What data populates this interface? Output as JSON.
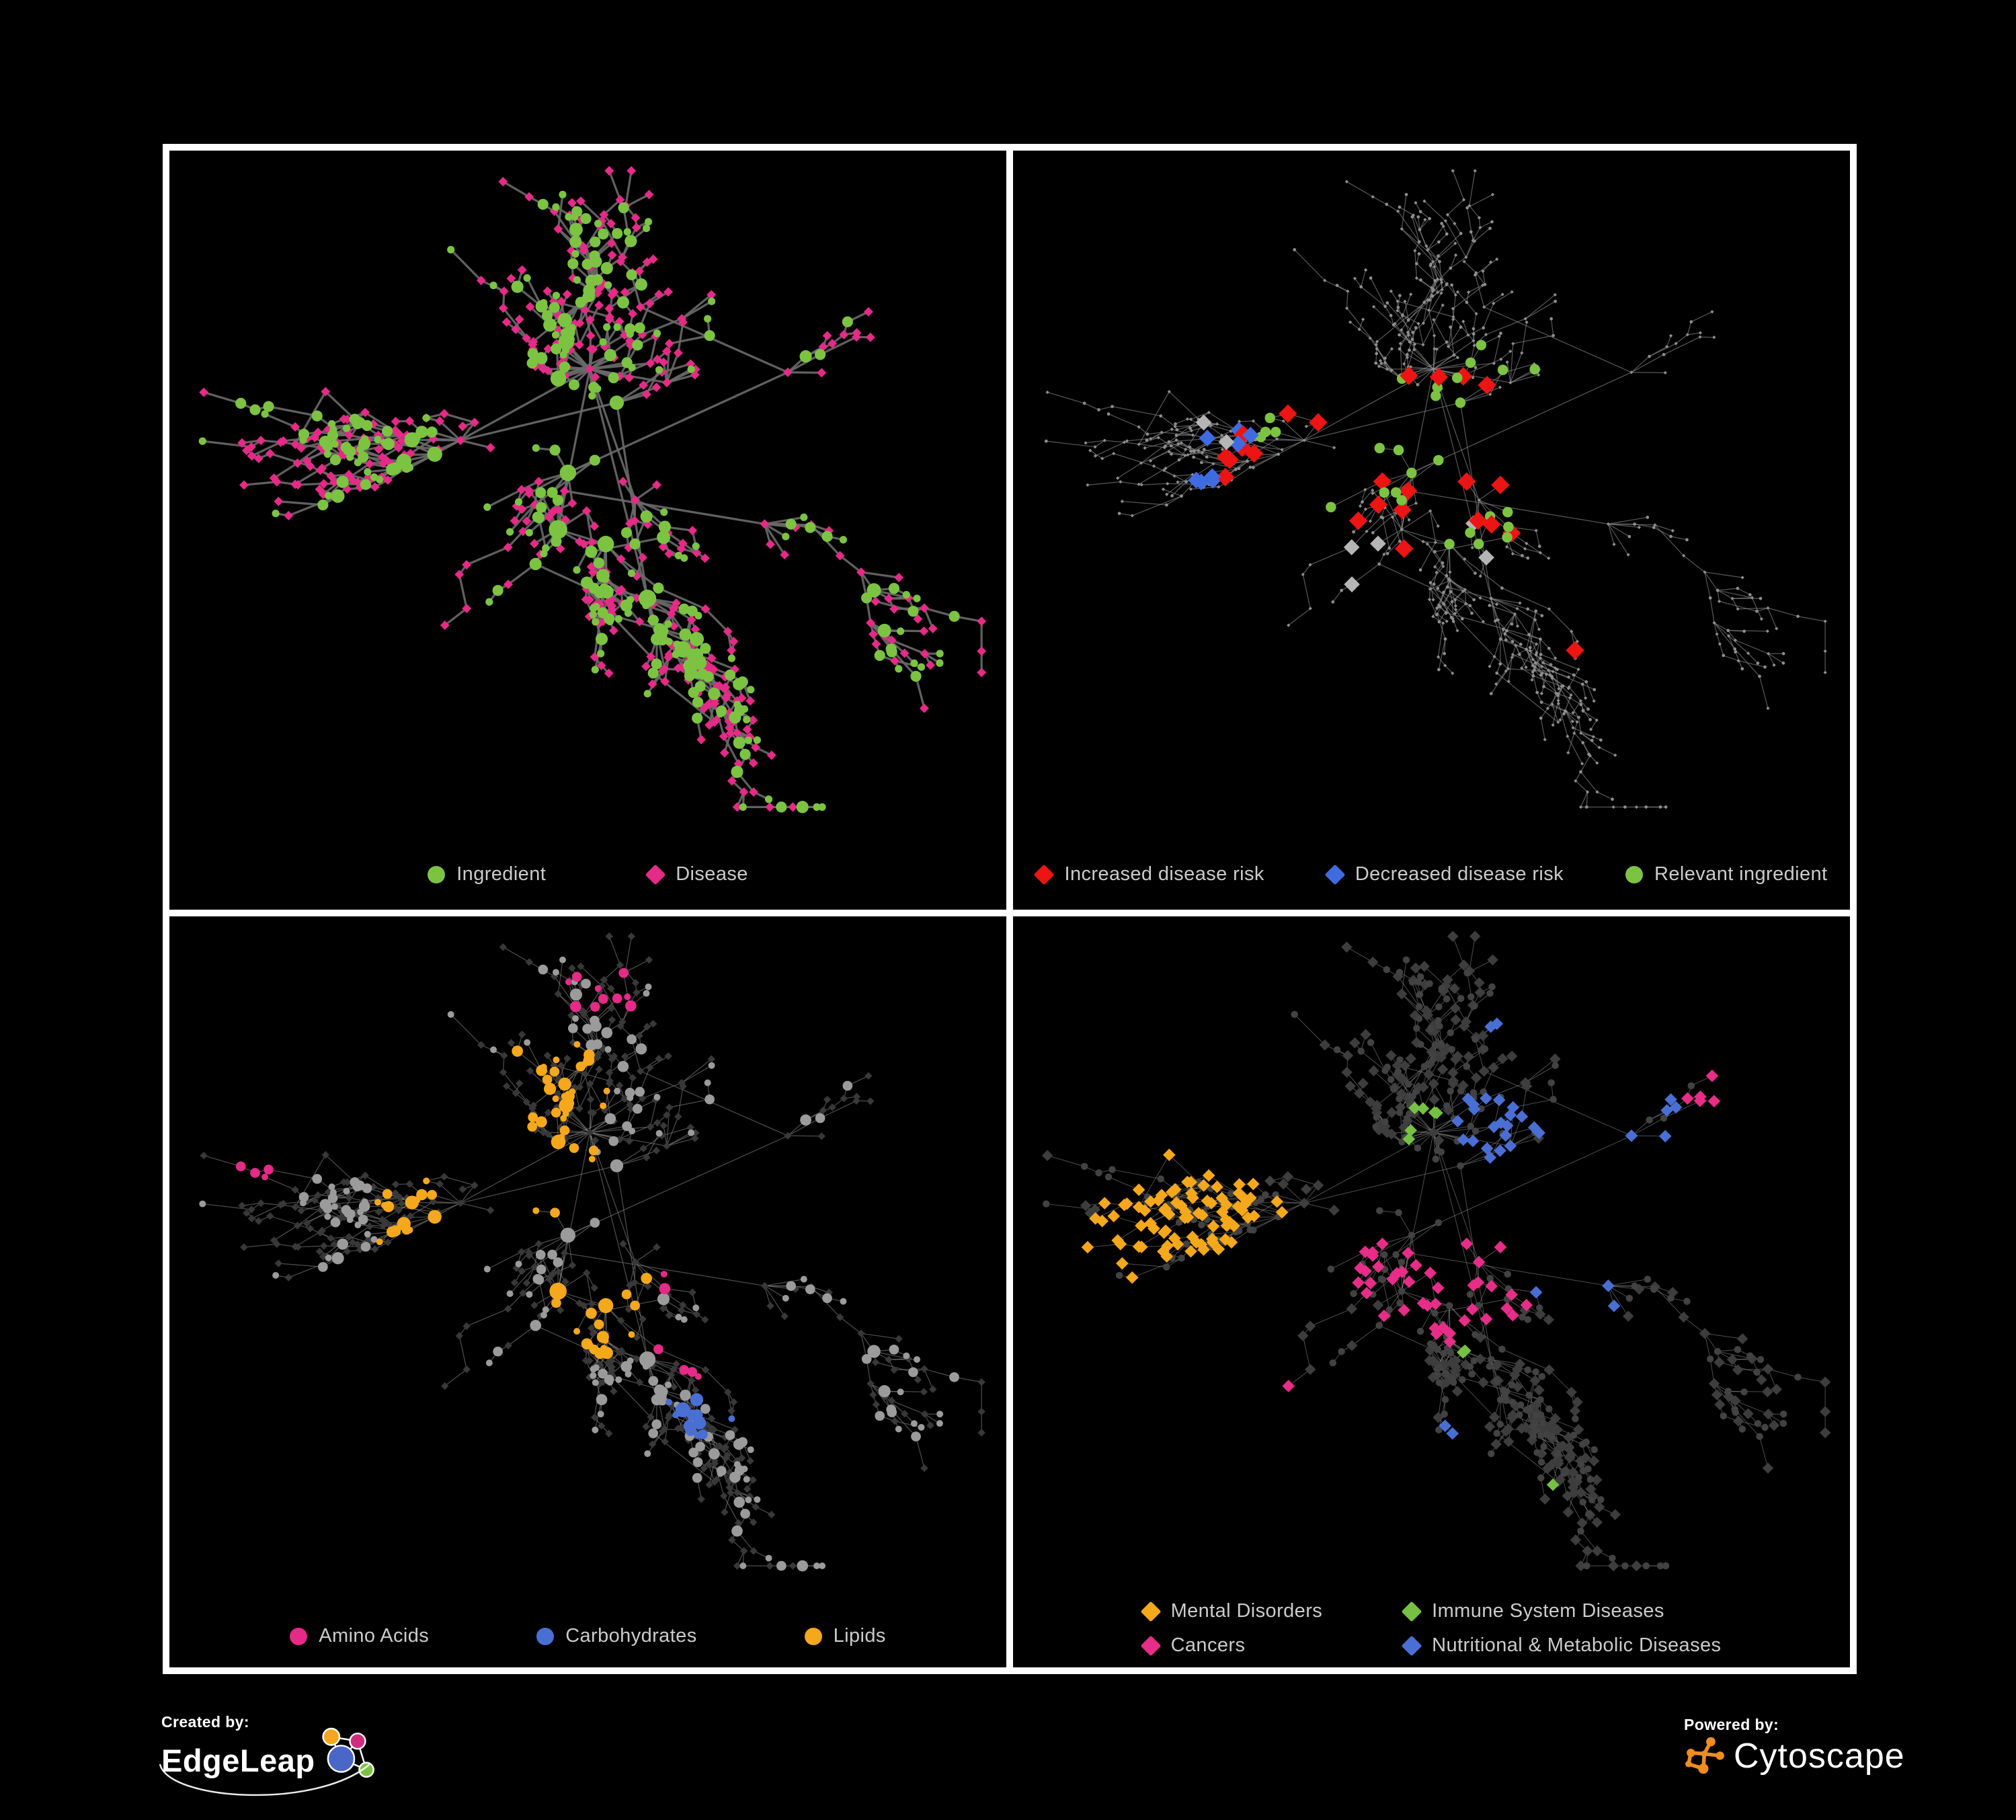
{
  "page": {
    "background": "#000000",
    "frame_color": "#ffffff",
    "panel_background": "#000000",
    "legend_text_color": "#cbcbcb"
  },
  "network": {
    "seed": 20,
    "nodes": 720,
    "hubs": 14,
    "bias": 2.0,
    "ingredient_share": 0.36,
    "extra_edges": 150
  },
  "panels": [
    {
      "name": "ingredient-disease-network",
      "legend": {
        "layout": "row",
        "items": [
          {
            "shape": "circle",
            "color": "#7cc342",
            "label": "Ingredient"
          },
          {
            "shape": "diamond",
            "color": "#e52a87",
            "label": "Disease"
          }
        ]
      },
      "style": {
        "edge": {
          "color": "#6a6a6a",
          "width": 2.6,
          "opacity": 0.9
        },
        "ingredient": {
          "shape": "circle",
          "color": "#7cc342",
          "rmin": 4.5,
          "rscale": 2.0,
          "rmax": 11.5
        },
        "disease": {
          "shape": "diamond",
          "color": "#e52a87",
          "r": 5.6
        },
        "highlights": []
      }
    },
    {
      "name": "disease-risk-network",
      "legend": {
        "layout": "row",
        "items": [
          {
            "shape": "diamond",
            "color": "#ed1414",
            "label": "Increased disease risk"
          },
          {
            "shape": "diamond",
            "color": "#3f6be0",
            "label": "Decreased disease risk"
          },
          {
            "shape": "circle",
            "color": "#7cc342",
            "label": "Relevant ingredient"
          }
        ]
      },
      "style": {
        "edge": {
          "color": "#8f8f8f",
          "width": 1.0,
          "opacity": 0.6
        },
        "ingredient": {
          "shape": "circle",
          "color": "#8e8e8e",
          "r": 1.9
        },
        "disease": {
          "shape": "diamond",
          "color": "#8e8e8e",
          "r": 2.1
        },
        "highlights": [
          {
            "type": "d",
            "shape": "diamond",
            "color": "#ed1414",
            "r": 11,
            "count": 24,
            "radius": 0.07,
            "foci": [
              [
                0.35,
                0.4
              ],
              [
                0.45,
                0.45
              ],
              [
                0.55,
                0.42
              ],
              [
                0.6,
                0.5
              ],
              [
                0.42,
                0.55
              ],
              [
                0.3,
                0.47
              ],
              [
                0.68,
                0.44
              ],
              [
                0.73,
                0.72
              ],
              [
                0.78,
                0.78
              ],
              [
                0.52,
                0.35
              ]
            ]
          },
          {
            "type": "d",
            "shape": "diamond",
            "color": "#3f6be0",
            "r": 10,
            "count": 8,
            "radius": 0.05,
            "foci": [
              [
                0.25,
                0.44
              ],
              [
                0.24,
                0.5
              ],
              [
                0.87,
                0.3
              ],
              [
                0.89,
                0.31
              ],
              [
                0.3,
                0.56
              ]
            ]
          },
          {
            "type": "d",
            "shape": "diamond",
            "color": "#b5b5b5",
            "r": 9.5,
            "count": 7,
            "radius": 0.06,
            "foci": [
              [
                0.27,
                0.38
              ],
              [
                0.5,
                0.5
              ],
              [
                0.57,
                0.55
              ],
              [
                0.45,
                0.6
              ]
            ]
          },
          {
            "type": "i",
            "shape": "circle",
            "color": "#7cc342",
            "r": 6.2,
            "count": 28,
            "radius": 0.09,
            "foci": [
              [
                0.42,
                0.42
              ],
              [
                0.5,
                0.4
              ],
              [
                0.55,
                0.5
              ],
              [
                0.35,
                0.35
              ],
              [
                0.3,
                0.55
              ],
              [
                0.6,
                0.35
              ],
              [
                0.25,
                0.3
              ]
            ]
          }
        ]
      }
    },
    {
      "name": "nutrient-class-network",
      "legend": {
        "layout": "row",
        "items": [
          {
            "shape": "circle",
            "color": "#e52a87",
            "label": "Amino Acids"
          },
          {
            "shape": "circle",
            "color": "#4a6fd4",
            "label": "Carbohydrates"
          },
          {
            "shape": "circle",
            "color": "#f5a81c",
            "label": "Lipids"
          }
        ]
      },
      "style": {
        "edge": {
          "color": "#8d8d8d",
          "width": 1.0,
          "opacity": 0.55
        },
        "ingredient": {
          "shape": "circle",
          "color": "#9b9b9b",
          "rmin": 4.0,
          "rscale": 1.9,
          "rmax": 10.5
        },
        "disease": {
          "shape": "diamond",
          "color": "#383838",
          "r": 4.6
        },
        "highlights": [
          {
            "type": "i",
            "shape": "circle",
            "color": "#f5a81c",
            "inherit_size": true,
            "count": 72,
            "radius": 0.07,
            "foci": [
              [
                0.42,
                0.28
              ],
              [
                0.37,
                0.33
              ],
              [
                0.46,
                0.24
              ],
              [
                0.3,
                0.44
              ],
              [
                0.52,
                0.58
              ],
              [
                0.26,
                0.3
              ],
              [
                0.58,
                0.44
              ],
              [
                0.45,
                0.38
              ]
            ]
          },
          {
            "type": "i",
            "shape": "circle",
            "color": "#e52a87",
            "inherit_size": true,
            "count": 20,
            "radius": 0.05,
            "foci": [
              [
                0.12,
                0.36
              ],
              [
                0.2,
                0.6
              ],
              [
                0.44,
                0.75
              ],
              [
                0.56,
                0.52
              ],
              [
                0.74,
                0.38
              ],
              [
                0.36,
                0.86
              ],
              [
                0.52,
                0.1
              ],
              [
                0.93,
                0.34
              ],
              [
                0.63,
                0.65
              ]
            ]
          },
          {
            "type": "i",
            "shape": "circle",
            "color": "#4a6fd4",
            "inherit_size": true,
            "count": 13,
            "radius": 0.045,
            "foci": [
              [
                0.37,
                0.36
              ],
              [
                0.41,
                0.31
              ],
              [
                0.21,
                0.33
              ],
              [
                0.64,
                0.73
              ],
              [
                0.11,
                0.28
              ]
            ]
          }
        ]
      }
    },
    {
      "name": "disease-class-network",
      "legend": {
        "layout": "grid",
        "items": [
          {
            "shape": "diamond",
            "color": "#f5a81c",
            "label": "Mental Disorders"
          },
          {
            "shape": "diamond",
            "color": "#76c043",
            "label": "Immune System Diseases"
          },
          {
            "shape": "diamond",
            "color": "#e82d88",
            "label": "Cancers"
          },
          {
            "shape": "diamond",
            "color": "#4a6fd4",
            "label": "Nutritional & Metabolic Diseases"
          }
        ]
      },
      "style": {
        "edge": {
          "color": "#9b9b9b",
          "width": 0.8,
          "opacity": 0.5
        },
        "ingredient": {
          "shape": "circle",
          "color": "#424242",
          "r": 4.2
        },
        "disease": {
          "shape": "diamond",
          "color": "#3d3d3d",
          "r": 6.6
        },
        "highlights": [
          {
            "type": "d",
            "shape": "diamond",
            "color": "#f5a81c",
            "r": 7.5,
            "count": 85,
            "radius": 0.075,
            "foci": [
              [
                0.16,
                0.45
              ],
              [
                0.13,
                0.5
              ],
              [
                0.2,
                0.52
              ],
              [
                0.22,
                0.4
              ],
              [
                0.18,
                0.33
              ],
              [
                0.34,
                0.1
              ],
              [
                0.26,
                0.47
              ]
            ]
          },
          {
            "type": "d",
            "shape": "diamond",
            "color": "#e82d88",
            "r": 7.5,
            "count": 60,
            "radius": 0.06,
            "foci": [
              [
                0.46,
                0.52
              ],
              [
                0.52,
                0.47
              ],
              [
                0.5,
                0.58
              ],
              [
                0.44,
                0.44
              ],
              [
                0.87,
                0.28
              ],
              [
                0.3,
                0.75
              ],
              [
                0.57,
                0.54
              ]
            ]
          },
          {
            "type": "d",
            "shape": "diamond",
            "color": "#4a6fd4",
            "r": 7.5,
            "count": 72,
            "radius": 0.055,
            "foci": [
              [
                0.68,
                0.55
              ],
              [
                0.78,
                0.28
              ],
              [
                0.62,
                0.14
              ],
              [
                0.86,
                0.42
              ],
              [
                0.33,
                0.08
              ],
              [
                0.52,
                0.8
              ],
              [
                0.27,
                0.62
              ],
              [
                0.73,
                0.46
              ],
              [
                0.9,
                0.33
              ],
              [
                0.58,
                0.3
              ]
            ]
          },
          {
            "type": "d",
            "shape": "diamond",
            "color": "#76c043",
            "r": 7.5,
            "count": 9,
            "radius": 0.05,
            "foci": [
              [
                0.45,
                0.4
              ],
              [
                0.5,
                0.3
              ],
              [
                0.55,
                0.6
              ],
              [
                0.6,
                0.85
              ],
              [
                0.4,
                0.55
              ]
            ]
          }
        ]
      }
    }
  ],
  "footer": {
    "created_by": {
      "label": "Created by:",
      "brand": "EdgeLeap"
    },
    "powered_by": {
      "label": "Powered by:",
      "brand": "Cytoscape"
    },
    "edgeleap_icon_colors": {
      "blue": "#4a67c8",
      "orange": "#f5a81c",
      "pink": "#cf2d7b",
      "green": "#7cc342"
    },
    "cytoscape_icon_color": "#ef8d1f"
  }
}
